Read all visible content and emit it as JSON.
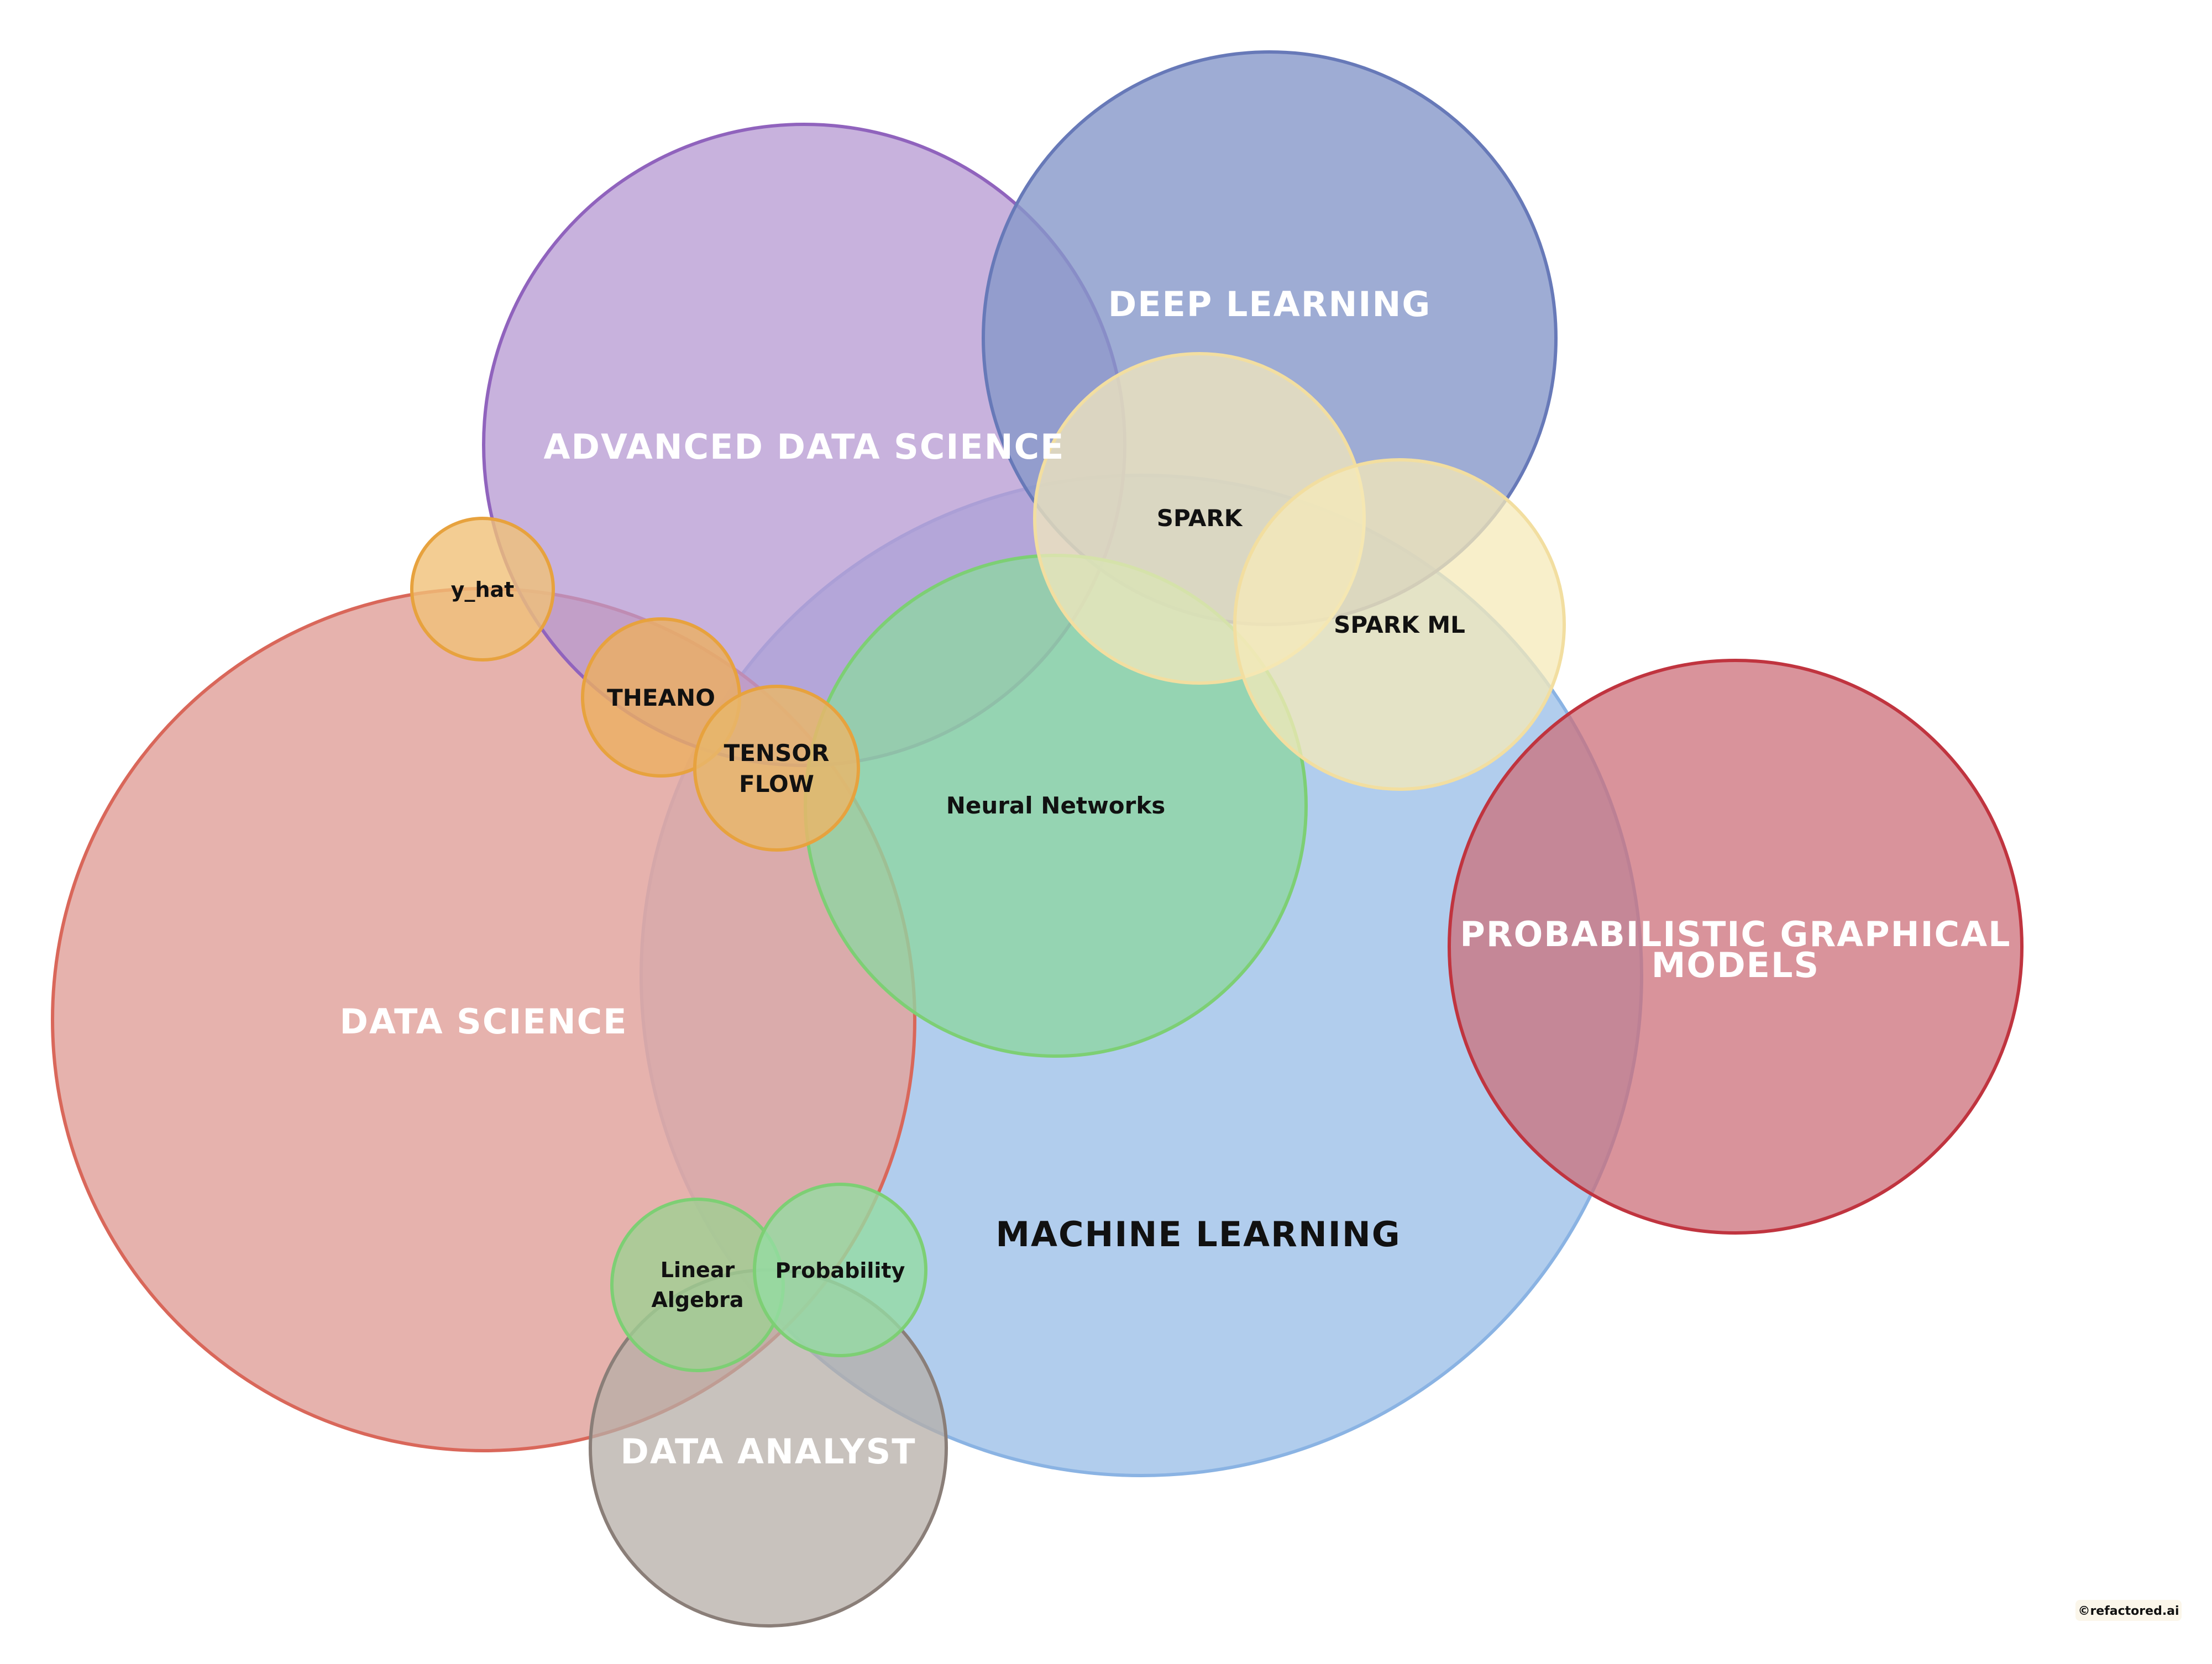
{
  "circles": {
    "machine_learning": {
      "label": "MACHINE LEARNING",
      "fill": "#a9c8eb",
      "stroke": "#8ab3e3"
    },
    "data_science": {
      "label": "DATA SCIENCE",
      "fill": "#e2a49f",
      "stroke": "#d9675a"
    },
    "advanced_data_science": {
      "label": "ADVANCED DATA SCIENCE",
      "fill": "#b698d2",
      "stroke": "#9063bd"
    },
    "deep_learning": {
      "label": "DEEP LEARNING",
      "fill": "#8697c9",
      "stroke": "#6779b8"
    },
    "probabilistic_graphical_models": {
      "label_line1": "PROBABILISTIC GRAPHICAL",
      "label_line2": "MODELS",
      "fill": "#cc6f7a",
      "stroke": "#c0343f"
    },
    "data_analyst": {
      "label": "DATA ANALYST",
      "fill": "#b5ada7",
      "stroke": "#8a7e78"
    },
    "neural_networks": {
      "label": "Neural Networks",
      "fill": "#8fd6a3",
      "stroke": "#7dcf74"
    },
    "spark": {
      "label": "SPARK",
      "fill": "#f3e8bc",
      "stroke": "#f2dea0"
    },
    "spark_ml": {
      "label": "SPARK ML",
      "fill": "#f6e9b8",
      "stroke": "#f2dea0"
    },
    "y_hat": {
      "label": "y_hat",
      "fill": "#f0c078",
      "stroke": "#e7a23e"
    },
    "theano": {
      "label": "THEANO",
      "fill": "#ecaf60",
      "stroke": "#e7a23e"
    },
    "tensor_flow": {
      "label_line1": "TENSOR",
      "label_line2": "FLOW",
      "fill": "#e8b66b",
      "stroke": "#e7a23e"
    },
    "linear_algebra": {
      "label_line1": "Linear",
      "label_line2": "Algebra",
      "fill": "#9fcf92",
      "stroke": "#7dcf74"
    },
    "probability": {
      "label": "Probability",
      "fill": "#95dca3",
      "stroke": "#7dcf74"
    }
  },
  "credit": "©refactored.ai"
}
